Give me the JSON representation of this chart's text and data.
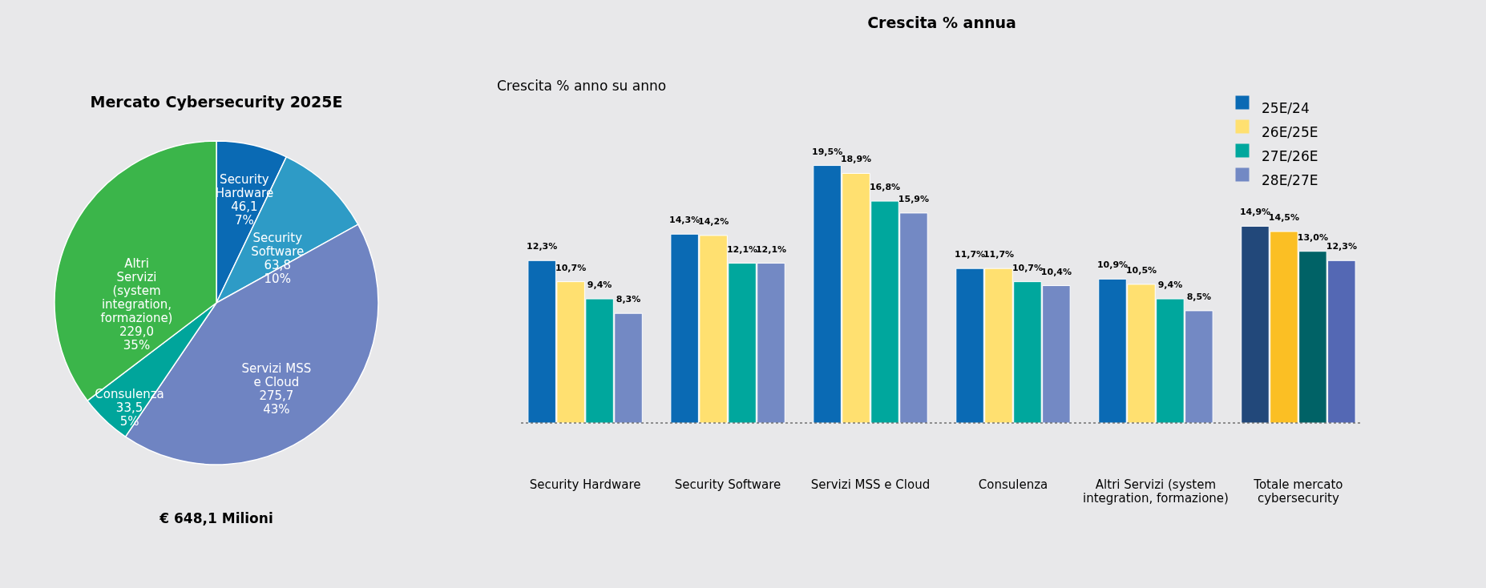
{
  "chart_data": [
    {
      "type": "pie",
      "title": "Mercato Cybersecurity 2025E",
      "categories": [
        "Security Hardware",
        "Security Software",
        "Servizi MSS e Cloud",
        "Consulenza",
        "Altri Servizi (system integration, formazione)"
      ],
      "values": [
        46.1,
        63.8,
        275.7,
        33.5,
        229.0
      ],
      "value_labels": [
        "46,1\n7%",
        "63,8\n10%",
        "275,7\n43%",
        "33,5\n5%",
        "229,0\n35%"
      ],
      "colors": [
        "#0a6ab4",
        "#2e9bc6",
        "#6f84c2",
        "#00a59b",
        "#3bb54a"
      ],
      "annotations": [
        "€ 648,1 Milioni"
      ]
    },
    {
      "type": "bar",
      "title": "Crescita % annua",
      "annotations": [
        "Crescita % anno su anno"
      ],
      "legend": "top right",
      "categories": [
        "Security Hardware",
        "Security Software",
        "Servizi MSS e Cloud",
        "Consulenza",
        "Altri Servizi (system integration, formazione)",
        "Totale mercato cybersecurity"
      ],
      "series": [
        {
          "name": "25E/24",
          "color": "#0a6ab4",
          "colors": [
            "#0a6ab4",
            "#0a6ab4",
            "#0a6ab4",
            "#0a6ab4",
            "#0a6ab4",
            "#22487a"
          ],
          "values": [
            12.3,
            14.3,
            19.5,
            11.7,
            10.9,
            14.9
          ],
          "value_labels": [
            "12,3%",
            "14,3%",
            "19,5%",
            "11,7%",
            "10,9%",
            "14,9%"
          ]
        },
        {
          "name": "26E/25E",
          "color": "#ffe070",
          "colors": [
            "#ffe070",
            "#ffe070",
            "#ffe070",
            "#ffe070",
            "#ffe070",
            "#fbbf24"
          ],
          "values": [
            10.7,
            14.2,
            18.9,
            11.7,
            10.5,
            14.5
          ],
          "value_labels": [
            "10,7%",
            "14,2%",
            "18,9%",
            "11,7%",
            "10,5%",
            "14,5%"
          ]
        },
        {
          "name": "27E/26E",
          "color": "#00a79d",
          "colors": [
            "#00a79d",
            "#00a79d",
            "#00a79d",
            "#00a79d",
            "#00a79d",
            "#006266"
          ],
          "values": [
            9.4,
            12.1,
            16.8,
            10.7,
            9.4,
            13.0
          ],
          "value_labels": [
            "9,4%",
            "12,1%",
            "16,8%",
            "10,7%",
            "9,4%",
            "13,0%"
          ]
        },
        {
          "name": "28E/27E",
          "color": "#7389c4",
          "colors": [
            "#7389c4",
            "#7389c4",
            "#7389c4",
            "#7389c4",
            "#7389c4",
            "#5468b4"
          ],
          "values": [
            8.3,
            12.1,
            15.9,
            10.4,
            8.5,
            12.3
          ],
          "value_labels": [
            "8,3%",
            "12,1%",
            "15,9%",
            "10,4%",
            "8,5%",
            "12,3%"
          ]
        }
      ]
    }
  ]
}
